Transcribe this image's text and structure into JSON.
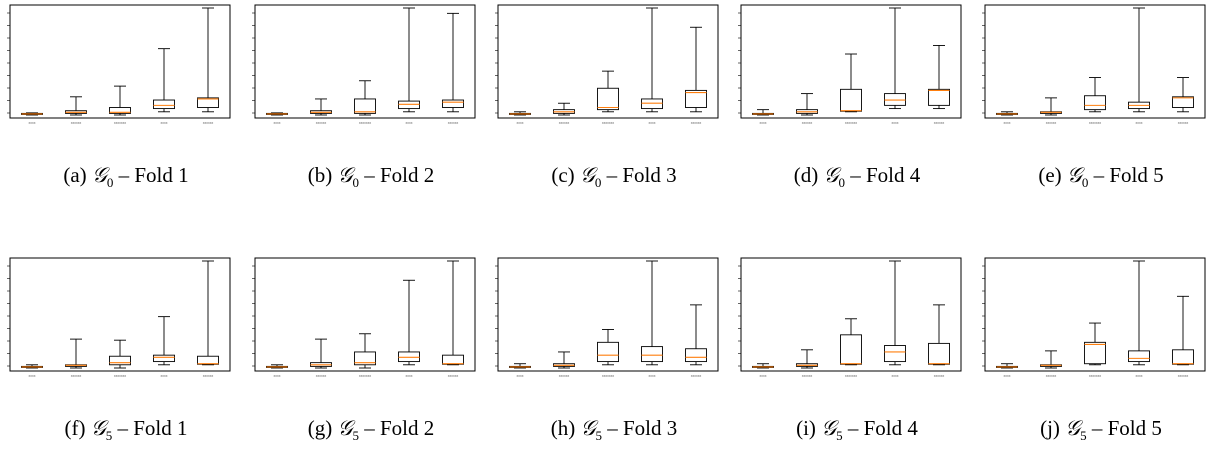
{
  "figure": {
    "category_labels": [
      "xxxx",
      "xxxxxx",
      "xxxxxxx",
      "xxxx",
      "xxxxxx"
    ],
    "box_color": "#000000",
    "median_color": "#ff7f0e"
  },
  "chart_data": [
    {
      "type": "box",
      "title": "(a) G0 – Fold 1",
      "label": "(a)",
      "group": "G",
      "group_sub": "0",
      "fold_text": "– Fold 1",
      "ylim": [
        0,
        100
      ],
      "boxes": [
        {
          "whisker_low": 0,
          "q1": 0.5,
          "median": 1.0,
          "q3": 1.5,
          "whisker_high": 2
        },
        {
          "whisker_low": 0,
          "q1": 1.5,
          "median": 2.5,
          "q3": 4,
          "whisker_high": 17
        },
        {
          "whisker_low": 0,
          "q1": 1.5,
          "median": 2.5,
          "q3": 7,
          "whisker_high": 27
        },
        {
          "whisker_low": 3,
          "q1": 6,
          "median": 9,
          "q3": 14,
          "whisker_high": 62
        },
        {
          "whisker_low": 3,
          "q1": 7,
          "median": 15,
          "q3": 16,
          "whisker_high": 100
        }
      ]
    },
    {
      "type": "box",
      "title": "(b) G0 – Fold 2",
      "label": "(b)",
      "group": "G",
      "group_sub": "0",
      "fold_text": "– Fold 2",
      "ylim": [
        0,
        100
      ],
      "boxes": [
        {
          "whisker_low": 0,
          "q1": 0.5,
          "median": 1.0,
          "q3": 1.5,
          "whisker_high": 2
        },
        {
          "whisker_low": 0,
          "q1": 1.5,
          "median": 2.5,
          "q3": 4,
          "whisker_high": 15
        },
        {
          "whisker_low": 0,
          "q1": 1.5,
          "median": 3,
          "q3": 15,
          "whisker_high": 32
        },
        {
          "whisker_low": 3,
          "q1": 6,
          "median": 10,
          "q3": 13,
          "whisker_high": 100
        },
        {
          "whisker_low": 3,
          "q1": 7,
          "median": 12,
          "q3": 14,
          "whisker_high": 95
        }
      ]
    },
    {
      "type": "box",
      "title": "(c) G0 – Fold 3",
      "label": "(c)",
      "group": "G",
      "group_sub": "0",
      "fold_text": "– Fold 3",
      "ylim": [
        0,
        100
      ],
      "boxes": [
        {
          "whisker_low": 0,
          "q1": 0.5,
          "median": 1.0,
          "q3": 1.5,
          "whisker_high": 3
        },
        {
          "whisker_low": 0,
          "q1": 1.5,
          "median": 3,
          "q3": 5,
          "whisker_high": 11
        },
        {
          "whisker_low": 3,
          "q1": 5,
          "median": 7,
          "q3": 25,
          "whisker_high": 41
        },
        {
          "whisker_low": 3,
          "q1": 6,
          "median": 11,
          "q3": 15,
          "whisker_high": 100
        },
        {
          "whisker_low": 3,
          "q1": 7,
          "median": 21,
          "q3": 23,
          "whisker_high": 82
        }
      ]
    },
    {
      "type": "box",
      "title": "(d) G0 – Fold 4",
      "label": "(d)",
      "group": "G",
      "group_sub": "0",
      "fold_text": "– Fold 4",
      "ylim": [
        0,
        100
      ],
      "boxes": [
        {
          "whisker_low": 0,
          "q1": 0.5,
          "median": 1.0,
          "q3": 1.5,
          "whisker_high": 5
        },
        {
          "whisker_low": 0,
          "q1": 1.5,
          "median": 3,
          "q3": 5,
          "whisker_high": 20
        },
        {
          "whisker_low": 3,
          "q1": 3.5,
          "median": 4,
          "q3": 24,
          "whisker_high": 57
        },
        {
          "whisker_low": 6,
          "q1": 9,
          "median": 14,
          "q3": 20,
          "whisker_high": 100
        },
        {
          "whisker_low": 6,
          "q1": 9,
          "median": 23,
          "q3": 24,
          "whisker_high": 65
        }
      ]
    },
    {
      "type": "box",
      "title": "(e) G0 – Fold 5",
      "label": "(e)",
      "group": "G",
      "group_sub": "0",
      "fold_text": "– Fold 5",
      "ylim": [
        0,
        100
      ],
      "boxes": [
        {
          "whisker_low": 0,
          "q1": 0.5,
          "median": 1.0,
          "q3": 1.5,
          "whisker_high": 3
        },
        {
          "whisker_low": 0,
          "q1": 1.5,
          "median": 2.5,
          "q3": 3,
          "whisker_high": 16
        },
        {
          "whisker_low": 3,
          "q1": 5,
          "median": 9,
          "q3": 18,
          "whisker_high": 35
        },
        {
          "whisker_low": 3,
          "q1": 6,
          "median": 9,
          "q3": 12,
          "whisker_high": 100
        },
        {
          "whisker_low": 3,
          "q1": 7,
          "median": 16,
          "q3": 17,
          "whisker_high": 35
        }
      ]
    },
    {
      "type": "box",
      "title": "(f) G5 – Fold 1",
      "label": "(f)",
      "group": "G",
      "group_sub": "5",
      "fold_text": "– Fold 1",
      "ylim": [
        0,
        100
      ],
      "boxes": [
        {
          "whisker_low": 0,
          "q1": 0.5,
          "median": 1.0,
          "q3": 1.5,
          "whisker_high": 3
        },
        {
          "whisker_low": 0,
          "q1": 1.5,
          "median": 2.5,
          "q3": 3,
          "whisker_high": 27
        },
        {
          "whisker_low": 0,
          "q1": 3,
          "median": 5,
          "q3": 11,
          "whisker_high": 26
        },
        {
          "whisker_low": 3,
          "q1": 6,
          "median": 10,
          "q3": 12,
          "whisker_high": 48
        },
        {
          "whisker_low": 3,
          "q1": 3.5,
          "median": 4,
          "q3": 11,
          "whisker_high": 100
        }
      ]
    },
    {
      "type": "box",
      "title": "(g) G5 – Fold 2",
      "label": "(g)",
      "group": "G",
      "group_sub": "5",
      "fold_text": "– Fold 2",
      "ylim": [
        0,
        100
      ],
      "boxes": [
        {
          "whisker_low": 0,
          "q1": 0.5,
          "median": 1.0,
          "q3": 1.5,
          "whisker_high": 3
        },
        {
          "whisker_low": 0,
          "q1": 1.5,
          "median": 3,
          "q3": 5,
          "whisker_high": 27
        },
        {
          "whisker_low": 0,
          "q1": 3,
          "median": 5,
          "q3": 15,
          "whisker_high": 32
        },
        {
          "whisker_low": 3,
          "q1": 6,
          "median": 10,
          "q3": 15,
          "whisker_high": 82
        },
        {
          "whisker_low": 3,
          "q1": 3.5,
          "median": 4,
          "q3": 12,
          "whisker_high": 100
        }
      ]
    },
    {
      "type": "box",
      "title": "(h) G5 – Fold 3",
      "label": "(h)",
      "group": "G",
      "group_sub": "5",
      "fold_text": "– Fold 3",
      "ylim": [
        0,
        100
      ],
      "boxes": [
        {
          "whisker_low": 0,
          "q1": 0.5,
          "median": 1.0,
          "q3": 1.5,
          "whisker_high": 4
        },
        {
          "whisker_low": 0,
          "q1": 1.5,
          "median": 2.5,
          "q3": 4,
          "whisker_high": 15
        },
        {
          "whisker_low": 3,
          "q1": 6,
          "median": 12,
          "q3": 24,
          "whisker_high": 36
        },
        {
          "whisker_low": 3,
          "q1": 6,
          "median": 12,
          "q3": 20,
          "whisker_high": 100
        },
        {
          "whisker_low": 3,
          "q1": 6,
          "median": 10,
          "q3": 18,
          "whisker_high": 59
        }
      ]
    },
    {
      "type": "box",
      "title": "(i) G5 – Fold 4",
      "label": "(i)",
      "group": "G",
      "group_sub": "5",
      "fold_text": "– Fold 4",
      "ylim": [
        0,
        100
      ],
      "boxes": [
        {
          "whisker_low": 0,
          "q1": 0.5,
          "median": 1.0,
          "q3": 1.5,
          "whisker_high": 4
        },
        {
          "whisker_low": 0,
          "q1": 1.5,
          "median": 2.5,
          "q3": 4,
          "whisker_high": 17
        },
        {
          "whisker_low": 3,
          "q1": 3.5,
          "median": 4,
          "q3": 31,
          "whisker_high": 46
        },
        {
          "whisker_low": 3,
          "q1": 6,
          "median": 15,
          "q3": 21,
          "whisker_high": 100
        },
        {
          "whisker_low": 3,
          "q1": 3.5,
          "median": 4,
          "q3": 23,
          "whisker_high": 59
        }
      ]
    },
    {
      "type": "box",
      "title": "(j) G5 – Fold 5",
      "label": "(j)",
      "group": "G",
      "group_sub": "5",
      "fold_text": "– Fold 5",
      "ylim": [
        0,
        100
      ],
      "boxes": [
        {
          "whisker_low": 0,
          "q1": 0.5,
          "median": 1.0,
          "q3": 1.5,
          "whisker_high": 4
        },
        {
          "whisker_low": 0,
          "q1": 1.5,
          "median": 2.5,
          "q3": 3,
          "whisker_high": 16
        },
        {
          "whisker_low": 3,
          "q1": 4,
          "median": 22,
          "q3": 24,
          "whisker_high": 42
        },
        {
          "whisker_low": 3,
          "q1": 6,
          "median": 9,
          "q3": 16,
          "whisker_high": 100
        },
        {
          "whisker_low": 3,
          "q1": 3.5,
          "median": 4,
          "q3": 17,
          "whisker_high": 67
        }
      ]
    }
  ]
}
